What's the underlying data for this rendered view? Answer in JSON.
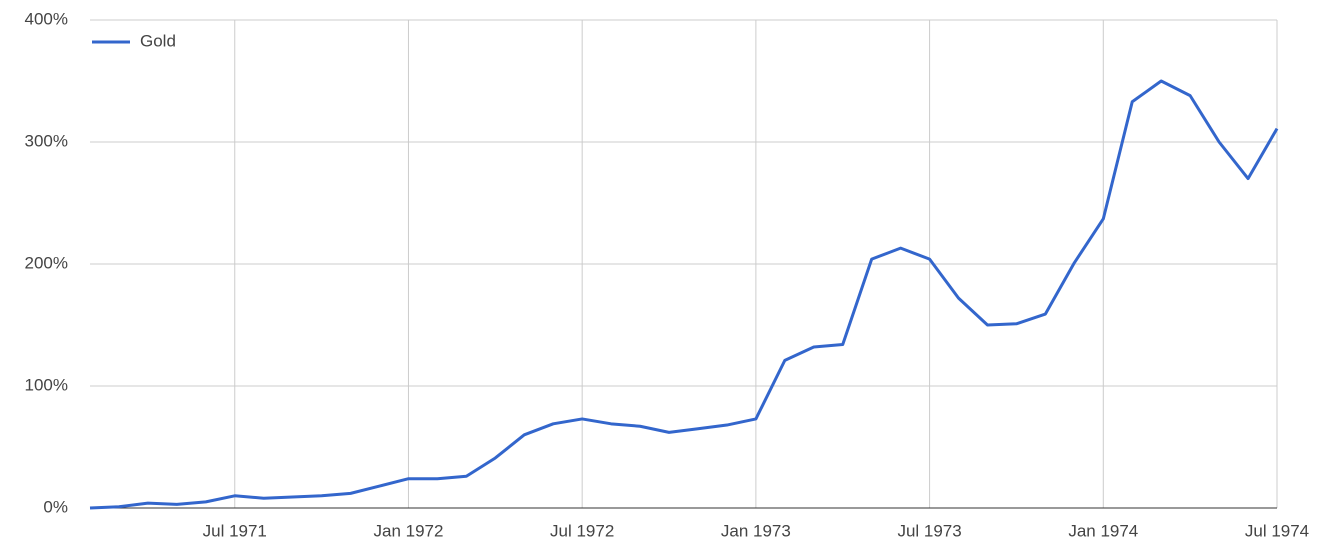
{
  "chart_data": {
    "type": "line",
    "x": [
      "1971-02",
      "1971-03",
      "1971-04",
      "1971-05",
      "1971-06",
      "1971-07",
      "1971-08",
      "1971-09",
      "1971-10",
      "1971-11",
      "1971-12",
      "1972-01",
      "1972-02",
      "1972-03",
      "1972-04",
      "1972-05",
      "1972-06",
      "1972-07",
      "1972-08",
      "1972-09",
      "1972-10",
      "1972-11",
      "1972-12",
      "1973-01",
      "1973-02",
      "1973-03",
      "1973-04",
      "1973-05",
      "1973-06",
      "1973-07",
      "1973-08",
      "1973-09",
      "1973-10",
      "1973-11",
      "1973-12",
      "1974-01",
      "1974-02",
      "1974-03",
      "1974-04",
      "1974-05",
      "1974-06",
      "1974-07"
    ],
    "series": [
      {
        "name": "Gold",
        "color": "#3366cc",
        "values": [
          0,
          1,
          4,
          3,
          5,
          10,
          8,
          9,
          10,
          12,
          18,
          24,
          24,
          26,
          41,
          60,
          69,
          73,
          69,
          67,
          62,
          65,
          68,
          73,
          121,
          132,
          134,
          204,
          213,
          204,
          172,
          150,
          151,
          159,
          201,
          237,
          333,
          350,
          338,
          300,
          270,
          311
        ]
      }
    ],
    "xlim": [
      "1971-02",
      "1974-07"
    ],
    "xticks": [
      {
        "value": "1971-07",
        "label": "Jul 1971"
      },
      {
        "value": "1972-01",
        "label": "Jan 1972"
      },
      {
        "value": "1972-07",
        "label": "Jul 1972"
      },
      {
        "value": "1973-01",
        "label": "Jan 1973"
      },
      {
        "value": "1973-07",
        "label": "Jul 1973"
      },
      {
        "value": "1974-01",
        "label": "Jan 1974"
      },
      {
        "value": "1974-07",
        "label": "Jul 1974"
      }
    ],
    "ylim": [
      0,
      400
    ],
    "yticks": [
      {
        "value": 0,
        "label": "0%"
      },
      {
        "value": 100,
        "label": "100%"
      },
      {
        "value": 200,
        "label": "200%"
      },
      {
        "value": 300,
        "label": "300%"
      },
      {
        "value": 400,
        "label": "400%"
      }
    ],
    "grid": true,
    "legend": "top-left"
  }
}
